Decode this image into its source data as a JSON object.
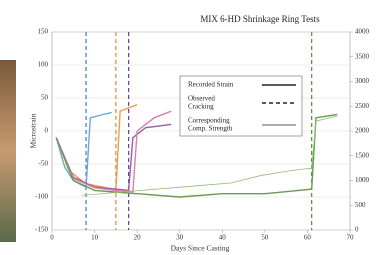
{
  "chart_data": {
    "type": "line",
    "title": "MIX 6-HD Shrinkage Ring Tests",
    "xlabel": "Days Since Casting",
    "ylabel": "Microstrain",
    "xlim": [
      0,
      70
    ],
    "xticks": [
      0,
      10,
      20,
      30,
      40,
      50,
      60,
      70
    ],
    "ylim": [
      -150,
      150
    ],
    "yticks": [
      -150,
      -100,
      -50,
      0,
      50,
      100,
      150
    ],
    "y2lim": [
      0,
      4000
    ],
    "y2ticks": [
      0,
      500,
      1000,
      1500,
      2000,
      2500,
      3000,
      3500,
      4000
    ],
    "grid": true,
    "legend": [
      {
        "label": [
          "Recorded Strain"
        ],
        "style": "solid"
      },
      {
        "label": [
          "Observed",
          "Cracking"
        ],
        "style": "dashed"
      },
      {
        "label": [
          "Corresponding",
          "Comp. Strength"
        ],
        "style": "thin"
      }
    ],
    "series": [
      {
        "color": "#6aa8d8",
        "style": "solid",
        "x": [
          1,
          3,
          5,
          7,
          8,
          9,
          12,
          14
        ],
        "values": [
          -10,
          -55,
          -75,
          -82,
          -85,
          20,
          25,
          28
        ]
      },
      {
        "color": "#e8a050",
        "style": "solid",
        "x": [
          1,
          4,
          8,
          12,
          14,
          15,
          16,
          20
        ],
        "values": [
          -10,
          -60,
          -80,
          -85,
          -88,
          -90,
          30,
          40
        ]
      },
      {
        "color": "#9a5ab0",
        "style": "solid",
        "x": [
          1,
          5,
          10,
          15,
          18,
          19,
          22,
          28
        ],
        "values": [
          -10,
          -70,
          -85,
          -88,
          -90,
          -10,
          5,
          10
        ]
      },
      {
        "color": "#d880a8",
        "style": "solid",
        "x": [
          1,
          5,
          10,
          15,
          19,
          20,
          24,
          28
        ],
        "values": [
          -10,
          -72,
          -86,
          -90,
          -92,
          0,
          20,
          30
        ]
      },
      {
        "color": "#6a9a50",
        "style": "solid",
        "x": [
          1,
          5,
          10,
          20,
          30,
          40,
          50,
          58,
          61,
          62,
          67
        ],
        "values": [
          -10,
          -75,
          -90,
          -95,
          -100,
          -95,
          -95,
          -90,
          -88,
          20,
          25
        ]
      },
      {
        "color": "#8fbf70",
        "style": "thin",
        "axis": "y2",
        "x": [
          7,
          14,
          21,
          28,
          35,
          42,
          49,
          56,
          61,
          62,
          67
        ],
        "values": [
          700,
          750,
          800,
          850,
          900,
          950,
          1100,
          1200,
          1250,
          2200,
          2300
        ]
      }
    ],
    "cracks": [
      {
        "x": 8,
        "color": "#3a78c0"
      },
      {
        "x": 15,
        "color": "#e08a30"
      },
      {
        "x": 18,
        "color": "#6a3a9a"
      },
      {
        "x": 61,
        "color": "#4a8a3a"
      }
    ]
  }
}
